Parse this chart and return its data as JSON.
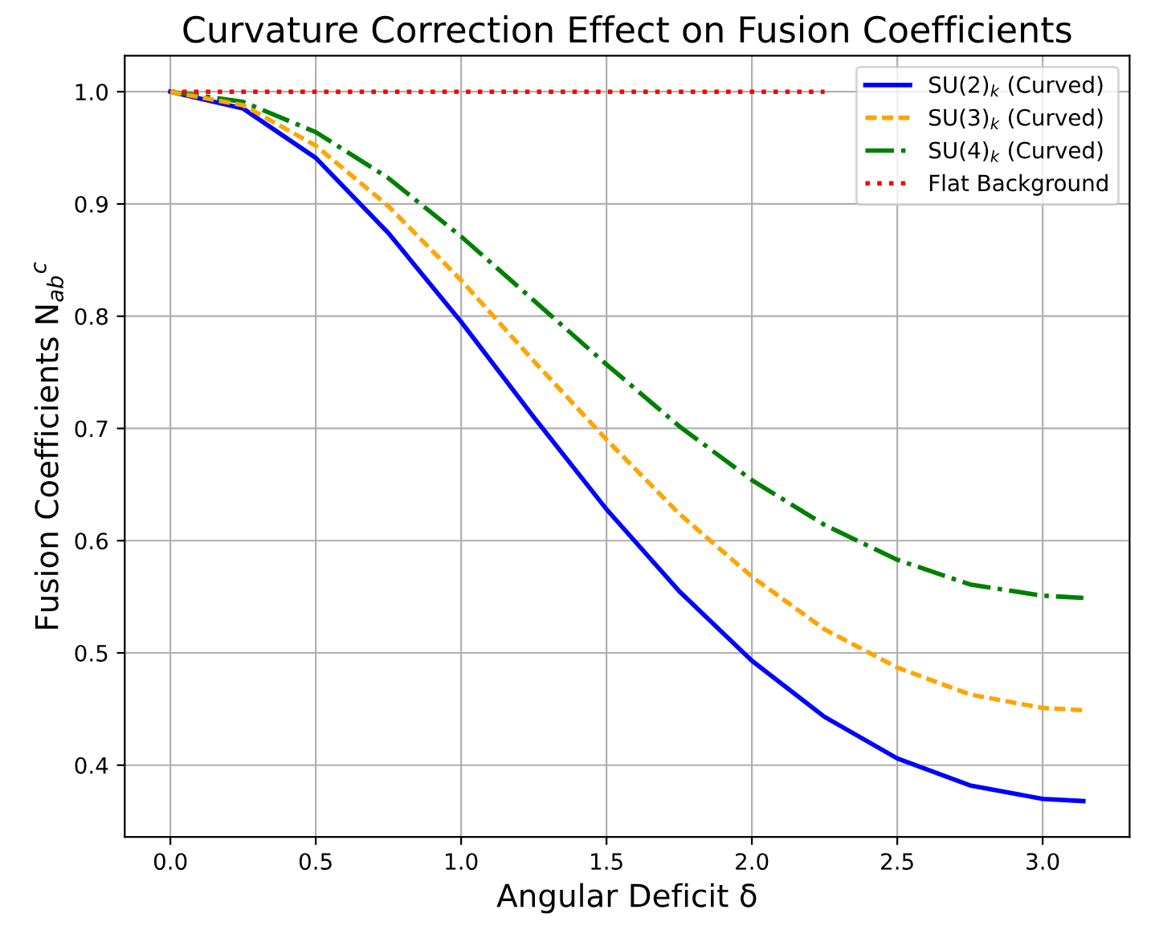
{
  "chart_data": {
    "type": "line",
    "title": "Curvature Correction Effect on Fusion Coefficients",
    "xlabel": "Angular Deficit δ",
    "ylabel": "Fusion Coefficients N$_{ab}$$^{c}$",
    "x": [
      0.0,
      0.25,
      0.5,
      0.75,
      1.0,
      1.25,
      1.5,
      1.75,
      2.0,
      2.25,
      2.5,
      2.75,
      3.0,
      3.14
    ],
    "series": [
      {
        "name": "SU(2)$_{k}$ (Curved)",
        "color": "#0000ff",
        "line_style": "solid",
        "values": [
          1.0,
          0.985,
          0.941,
          0.874,
          0.795,
          0.71,
          0.628,
          0.555,
          0.493,
          0.443,
          0.406,
          0.382,
          0.37,
          0.368
        ]
      },
      {
        "name": "SU(3)$_{k}$ (Curved)",
        "color": "#ffa500",
        "line_style": "dashed",
        "values": [
          1.0,
          0.988,
          0.952,
          0.898,
          0.832,
          0.76,
          0.69,
          0.624,
          0.568,
          0.521,
          0.487,
          0.463,
          0.451,
          0.449
        ]
      },
      {
        "name": "SU(4)$_{k}$ (Curved)",
        "color": "#008000",
        "line_style": "dashdot",
        "values": [
          1.0,
          0.991,
          0.964,
          0.923,
          0.871,
          0.814,
          0.757,
          0.702,
          0.654,
          0.614,
          0.583,
          0.561,
          0.551,
          0.549
        ]
      },
      {
        "name": "Flat Background",
        "color": "#ff0000",
        "line_style": "dotted",
        "values": [
          1.0,
          1.0,
          1.0,
          1.0,
          1.0,
          1.0,
          1.0,
          1.0,
          1.0,
          1.0,
          null,
          null,
          null,
          null
        ]
      }
    ],
    "xlim": [
      -0.157,
      3.299
    ],
    "ylim": [
      0.336,
      1.032
    ],
    "xticks": [
      {
        "value": 0,
        "label": "0.0"
      },
      0.5,
      {
        "value": 1,
        "label": "1.0"
      },
      1.5,
      {
        "value": 2,
        "label": "2.0"
      },
      2.5,
      {
        "value": 3,
        "label": "3.0"
      }
    ],
    "yticks": [
      0.4,
      0.5,
      0.6,
      0.7,
      0.8,
      0.9,
      {
        "value": 1,
        "label": "1.0"
      }
    ],
    "grid": true,
    "legend": "top right"
  }
}
